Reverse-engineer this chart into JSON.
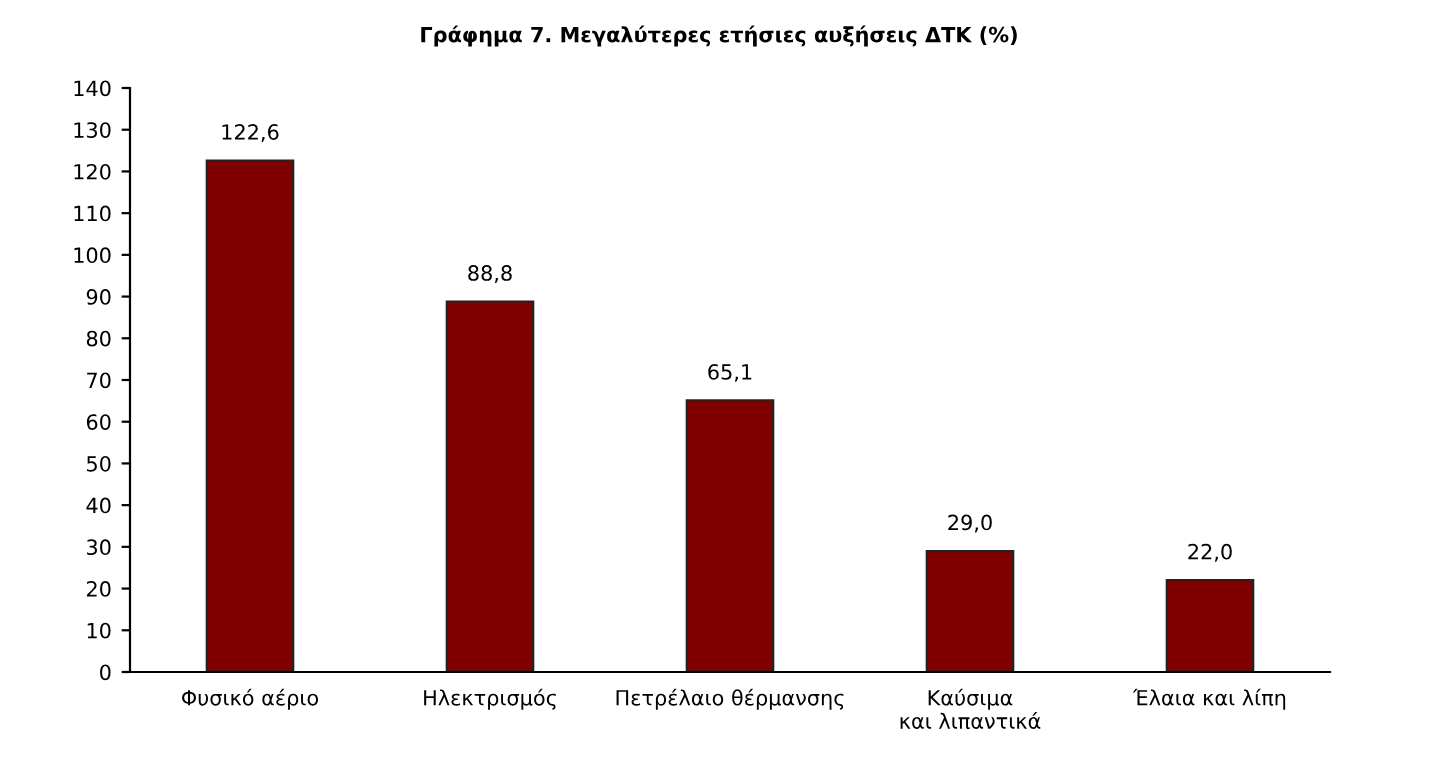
{
  "chart_data": {
    "type": "bar",
    "title": "Γράφημα 7. Μεγαλύτερες ετήσιες αυξήσεις ΔΤΚ (%)",
    "categories": [
      "Φυσικό αέριο",
      "Ηλεκτρισμός",
      "Πετρέλαιο θέρμανσης",
      "Καύσιμα\nκαι λιπαντικά",
      "Έλαια και λίπη"
    ],
    "values": [
      122.6,
      88.8,
      65.1,
      29.0,
      22.0
    ],
    "value_labels": [
      "122,6",
      "88,8",
      "65,1",
      "29,0",
      "22,0"
    ],
    "color": "#800000",
    "ylim": [
      0,
      140
    ],
    "yticks": [
      0,
      10,
      20,
      30,
      40,
      50,
      60,
      70,
      80,
      90,
      100,
      110,
      120,
      130,
      140
    ],
    "grid": false
  }
}
